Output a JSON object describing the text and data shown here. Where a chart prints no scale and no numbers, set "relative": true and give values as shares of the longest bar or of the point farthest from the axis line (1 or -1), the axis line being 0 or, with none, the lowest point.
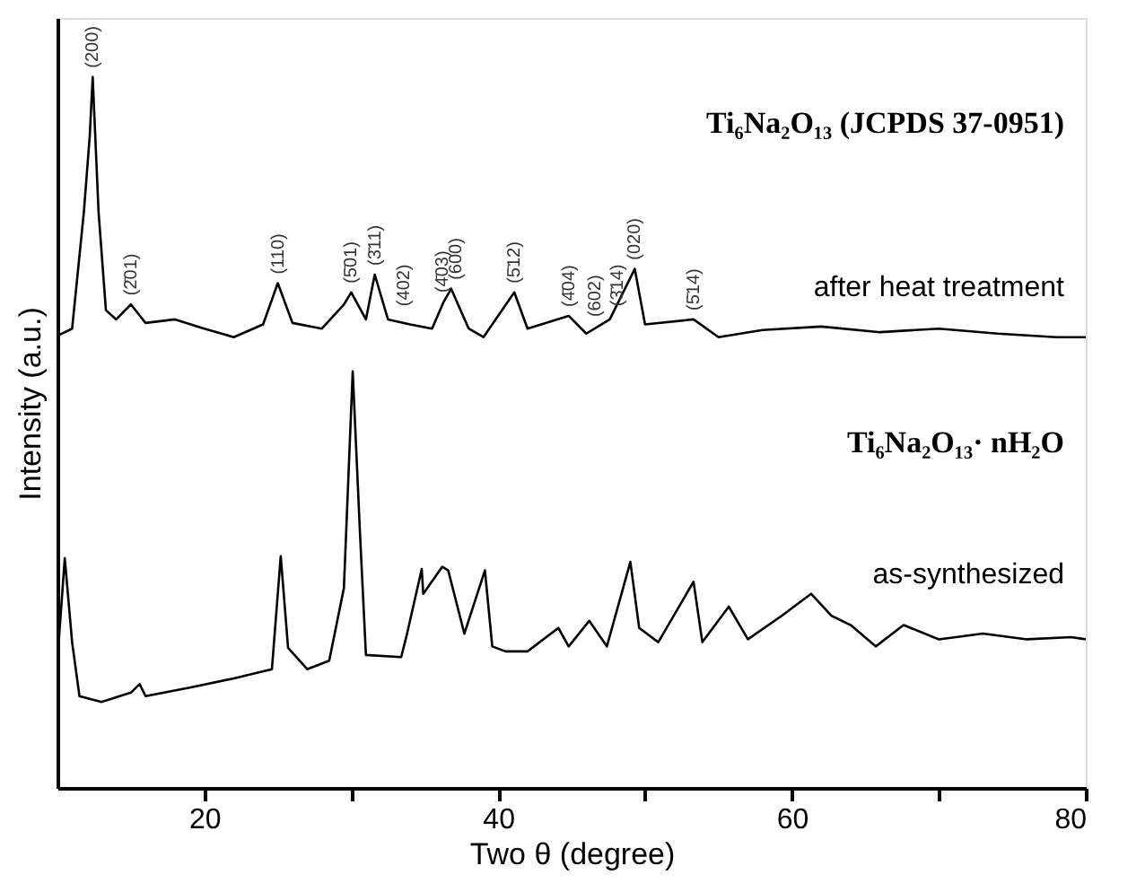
{
  "chart_data": {
    "type": "line",
    "relative": true,
    "xlabel": "Two θ (degree)",
    "ylabel": "Intensity (a.u.)",
    "xlim": [
      10,
      80
    ],
    "xticks": [
      20,
      {
        "value": 30,
        "label": null
      },
      40,
      {
        "value": 50,
        "label": null
      },
      60,
      {
        "value": 70,
        "label": null
      },
      80
    ],
    "tick_labels": "x",
    "grid": false,
    "marker": "none",
    "line_style": "solid",
    "series": [
      {
        "name": "after heat treatment",
        "color": "#000000",
        "x": [
          10,
          11,
          11.8,
          12.2,
          12.4,
          12.8,
          13.3,
          14,
          15,
          16,
          18,
          20,
          22,
          24,
          25,
          26,
          28,
          29.5,
          30,
          31,
          31.6,
          32.5,
          34,
          35.5,
          36.3,
          36.8,
          38,
          39,
          41.1,
          42,
          44.8,
          46,
          47.6,
          49.3,
          50,
          53.3,
          55,
          58,
          62,
          66,
          70,
          74,
          78,
          80
        ],
        "values": [
          0.636,
          0.646,
          0.81,
          0.917,
          1.0,
          0.81,
          0.672,
          0.659,
          0.68,
          0.654,
          0.659,
          0.646,
          0.634,
          0.652,
          0.71,
          0.654,
          0.646,
          0.68,
          0.697,
          0.659,
          0.722,
          0.659,
          0.652,
          0.646,
          0.684,
          0.702,
          0.646,
          0.634,
          0.697,
          0.646,
          0.664,
          0.639,
          0.659,
          0.73,
          0.652,
          0.659,
          0.634,
          0.644,
          0.649,
          0.641,
          0.646,
          0.639,
          0.634,
          0.634
        ]
      },
      {
        "name": "as-synthesized",
        "color": "#000000",
        "x": [
          10,
          10.5,
          11,
          11.5,
          13,
          15,
          15.6,
          16,
          19,
          22,
          24.6,
          25.2,
          25.7,
          27,
          28.5,
          29.5,
          30.1,
          30.6,
          31,
          33.4,
          33.8,
          34.8,
          34.9,
          36.2,
          36.6,
          37.7,
          39.1,
          39.6,
          40.5,
          42,
          44.1,
          44.8,
          46.2,
          47.4,
          49,
          49.6,
          50.9,
          53.3,
          53.9,
          55.7,
          57,
          59.3,
          61.3,
          62.7,
          64,
          65.7,
          67.6,
          70,
          73,
          76,
          79,
          80
        ],
        "values": [
          0.18,
          0.323,
          0.205,
          0.129,
          0.121,
          0.134,
          0.146,
          0.129,
          0.141,
          0.154,
          0.167,
          0.326,
          0.197,
          0.167,
          0.179,
          0.281,
          0.586,
          0.356,
          0.187,
          0.184,
          0.217,
          0.308,
          0.273,
          0.311,
          0.306,
          0.217,
          0.306,
          0.199,
          0.192,
          0.192,
          0.225,
          0.199,
          0.235,
          0.199,
          0.318,
          0.225,
          0.205,
          0.29,
          0.205,
          0.255,
          0.209,
          0.242,
          0.273,
          0.242,
          0.229,
          0.199,
          0.229,
          0.209,
          0.217,
          0.209,
          0.212,
          0.209
        ]
      }
    ],
    "annotations": [
      "Ti₆Na₂O₁₃ (JCPDS 37-0951)",
      "Ti₆Na₂O₁₃· nH₂O",
      {
        "text": "(200)",
        "x": 12.4,
        "y": 1.0
      },
      {
        "text": "(2̄01)",
        "x": 15,
        "y": 0.68
      },
      {
        "text": "(110)",
        "x": 25,
        "y": 0.71
      },
      {
        "text": "(5̄01)",
        "x": 30,
        "y": 0.697
      },
      {
        "text": "(3̄11)",
        "x": 31.6,
        "y": 0.722
      },
      {
        "text": "(402)",
        "x": 33.6,
        "y": 0.665
      },
      {
        "text": "(4̄03)",
        "x": 36.2,
        "y": 0.684
      },
      {
        "text": "(600)",
        "x": 37.1,
        "y": 0.702
      },
      {
        "text": "(5̄12)",
        "x": 41.1,
        "y": 0.697
      },
      {
        "text": "(4̄04)",
        "x": 44.8,
        "y": 0.664
      },
      {
        "text": "(602)",
        "x": 46.6,
        "y": 0.65
      },
      {
        "text": "(3̄14)",
        "x": 48.1,
        "y": 0.665
      },
      {
        "text": "(020)",
        "x": 49.3,
        "y": 0.73
      },
      {
        "text": "(5̄14)",
        "x": 53.3,
        "y": 0.659
      }
    ]
  }
}
